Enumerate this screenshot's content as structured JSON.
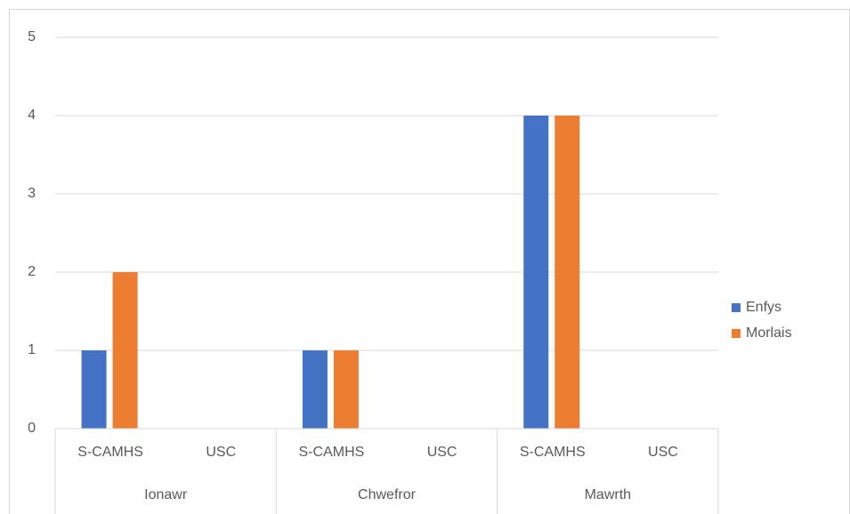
{
  "chart_data": {
    "type": "bar",
    "categories": [
      "S-CAMHS",
      "USC",
      "S-CAMHS",
      "USC",
      "S-CAMHS",
      "USC"
    ],
    "groups": [
      "Ionawr",
      "Chwefror",
      "Mawrth"
    ],
    "series": [
      {
        "name": "Enfys",
        "color": "#4472c4",
        "values": [
          1,
          null,
          1,
          null,
          4,
          null
        ]
      },
      {
        "name": "Morlais",
        "color": "#ed7d31",
        "values": [
          2,
          null,
          1,
          null,
          4,
          null
        ]
      }
    ],
    "ylim": [
      0,
      5
    ],
    "yticks": [
      0,
      1,
      2,
      3,
      4,
      5
    ],
    "grid": true,
    "legend": "right"
  }
}
